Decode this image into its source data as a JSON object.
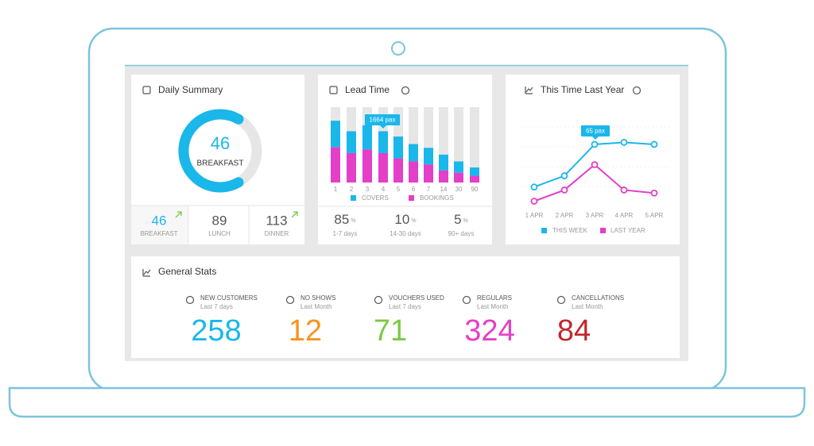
{
  "daily_summary": {
    "title": "Daily Summary",
    "ring": {
      "value": 46,
      "label": "BREAKFAST"
    },
    "meals": [
      {
        "value": 46,
        "label": "BREAKFAST"
      },
      {
        "value": 89,
        "label": "LUNCH"
      },
      {
        "value": 113,
        "label": "DINNER"
      }
    ]
  },
  "lead_time": {
    "title": "Lead Time",
    "chart": {
      "type": "bar",
      "stacked": true,
      "categories": [
        "1",
        "2",
        "3",
        "4",
        "5",
        "6",
        "7",
        "14",
        "30",
        "90"
      ],
      "series": [
        {
          "name": "COVERS",
          "color": "#1ab7ea",
          "values": [
            35,
            29,
            32,
            29,
            29,
            23,
            22,
            21,
            15,
            11
          ]
        },
        {
          "name": "BOOKINGS",
          "color": "#e43fc8",
          "values": [
            47,
            39,
            44,
            39,
            32,
            28,
            24,
            16,
            13,
            9
          ]
        }
      ],
      "ylim": [
        0,
        100
      ],
      "annotation": "1664 pax"
    },
    "stats": [
      {
        "value": 85,
        "unit": "%",
        "label": "1-7 days"
      },
      {
        "value": 10,
        "unit": "%",
        "label": "14-30 days"
      },
      {
        "value": 5,
        "unit": "%",
        "label": "90+ days"
      }
    ]
  },
  "this_time_last_year": {
    "title": "This Time Last Year",
    "chart": {
      "type": "line",
      "categories": [
        "1 APR",
        "2 APR",
        "3 APR",
        "4 APR",
        "5 APR"
      ],
      "series": [
        {
          "name": "THIS WEEK",
          "color": "#1ab7ea",
          "values": [
            23,
            34,
            65,
            67,
            65
          ]
        },
        {
          "name": "LAST YEAR",
          "color": "#e43fc8",
          "values": [
            9,
            20,
            45,
            20,
            17
          ]
        }
      ],
      "ylim": [
        0,
        90
      ],
      "annotation": "65 pax"
    }
  },
  "general_stats": {
    "title": "General Stats",
    "items": [
      {
        "label": "NEW CUSTOMERS",
        "period": "Last 7 days",
        "value": 258,
        "color": "#1ab7ea"
      },
      {
        "label": "NO SHOWS",
        "period": "Last Month",
        "value": 12,
        "color": "#f7941d"
      },
      {
        "label": "VOUCHERS USED",
        "period": "Last 7 days",
        "value": 71,
        "color": "#7ac943"
      },
      {
        "label": "REGULARS",
        "period": "Last Month",
        "value": 324,
        "color": "#e43fc8"
      },
      {
        "label": "CANCELLATIONS",
        "period": "Last Month",
        "value": 84,
        "color": "#c1272d"
      }
    ]
  }
}
